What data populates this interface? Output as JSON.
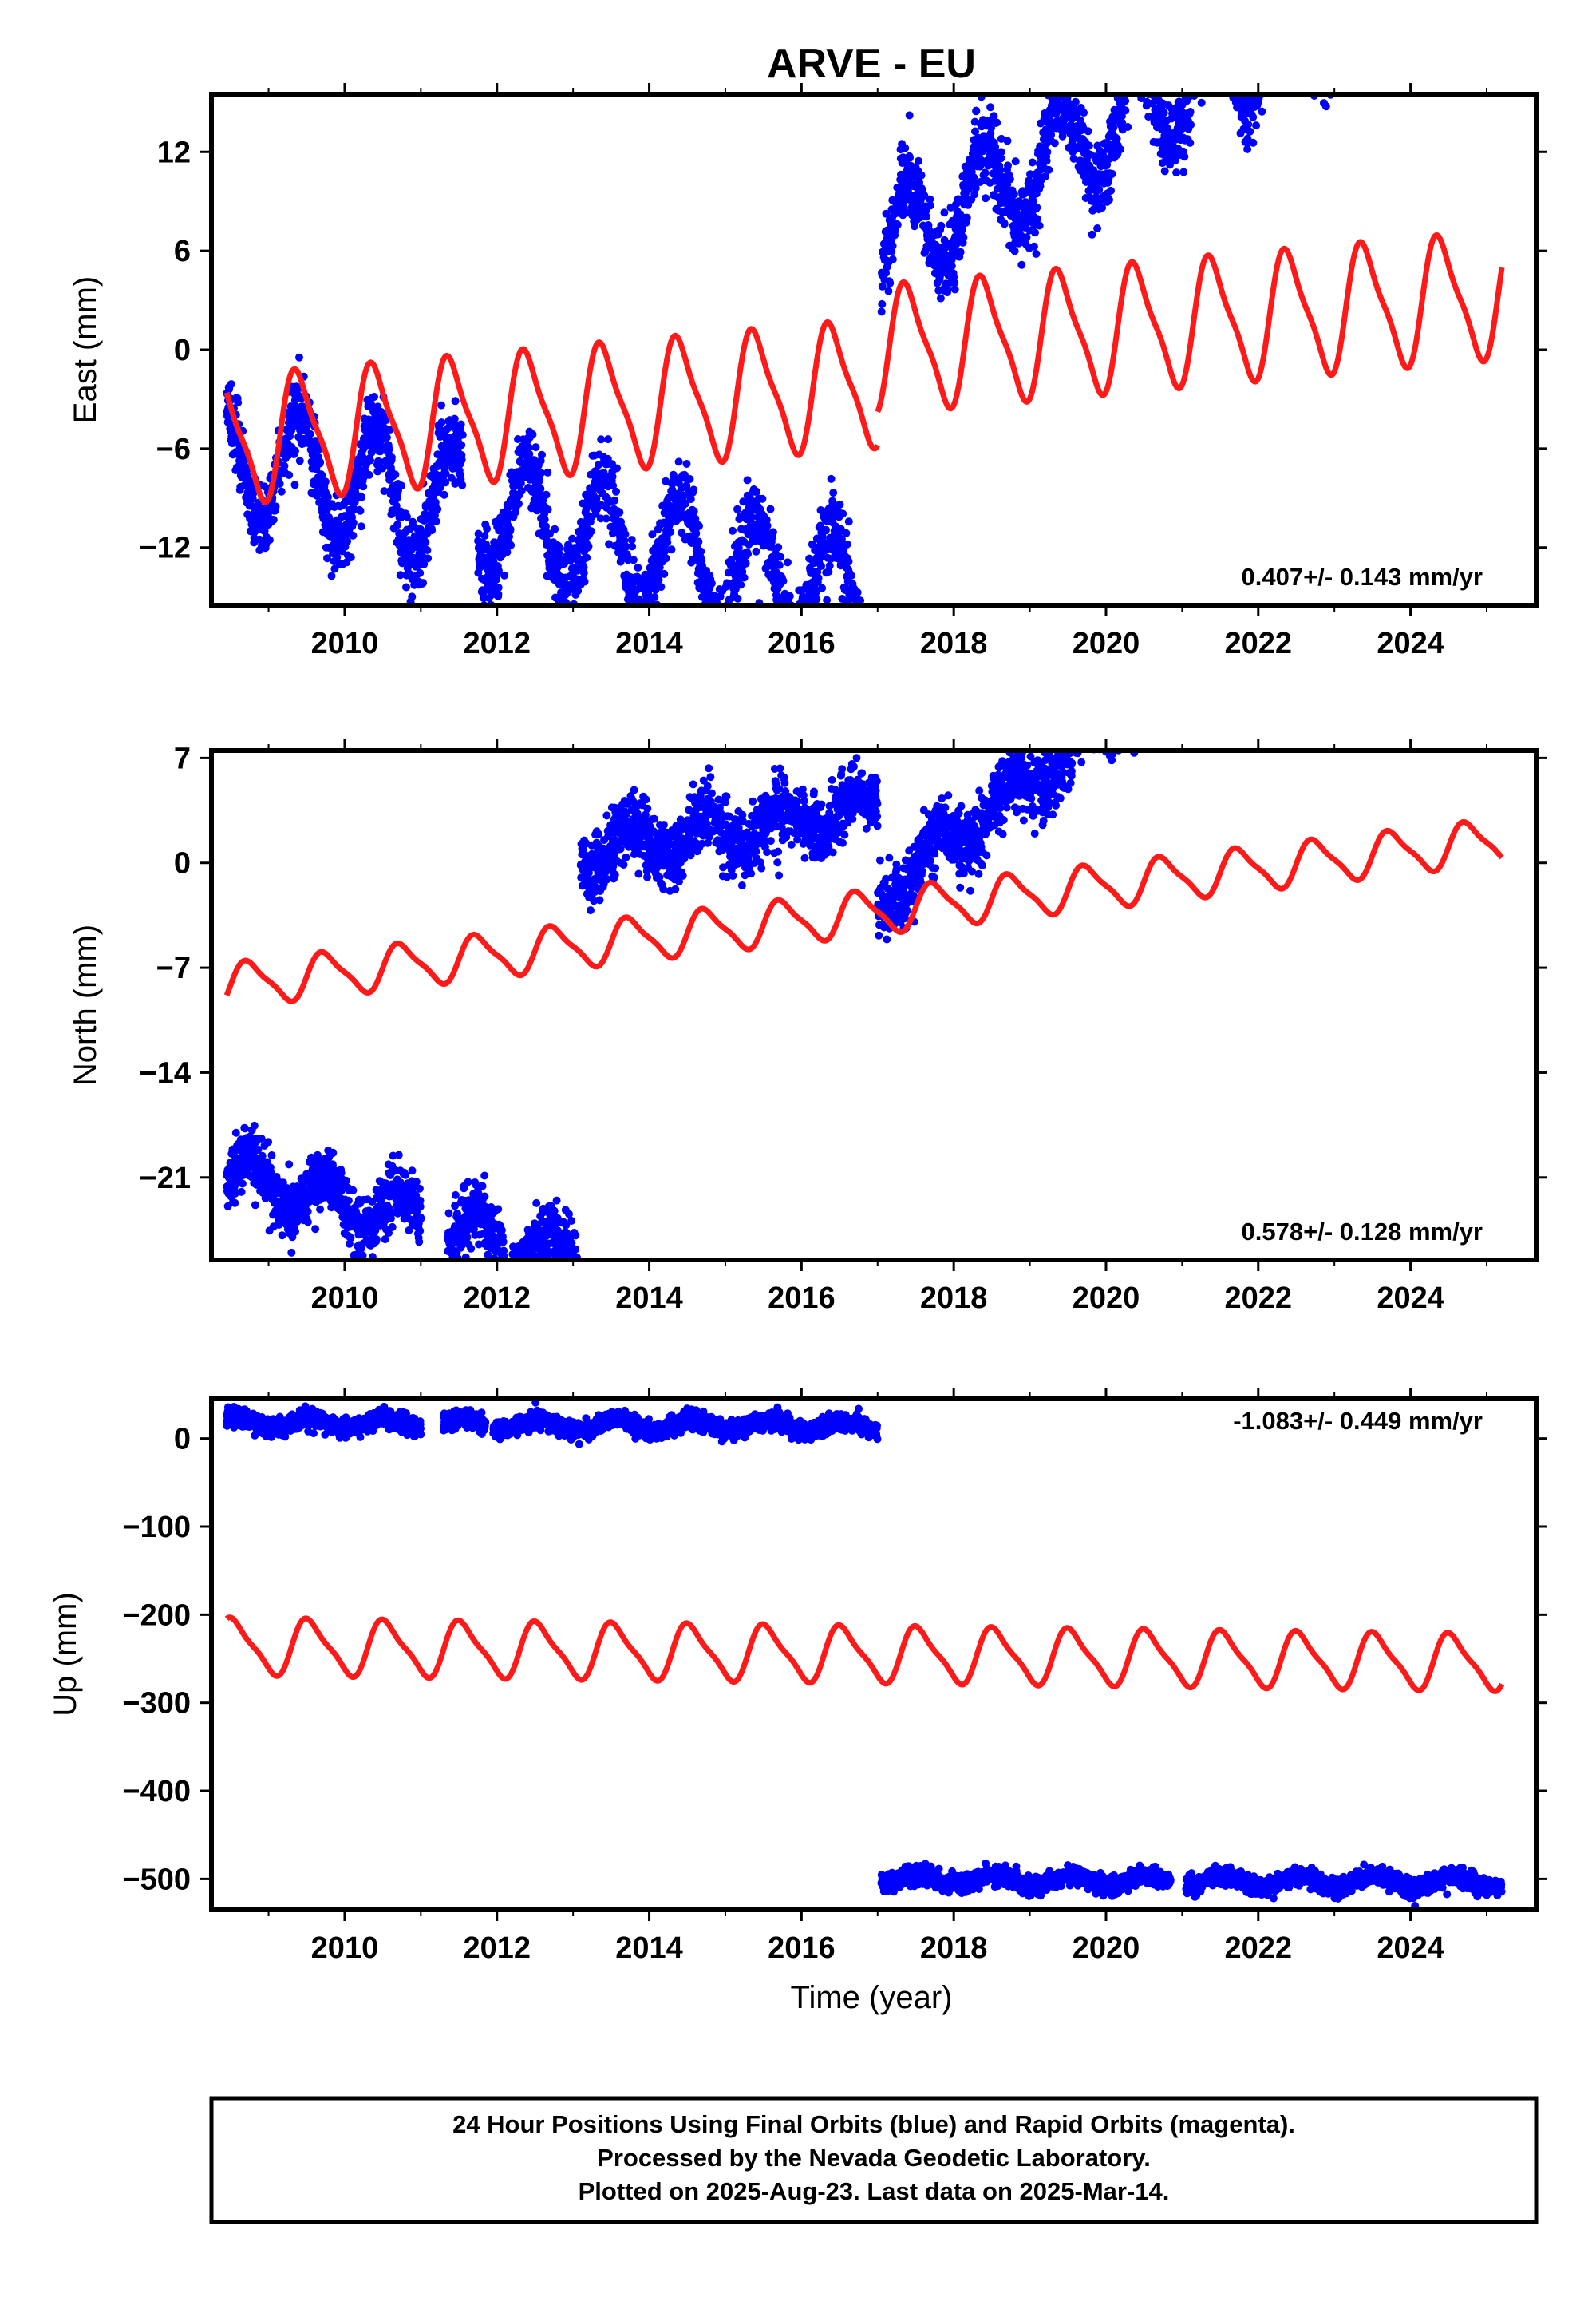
{
  "title": "ARVE - EU",
  "xlabel": "Time (year)",
  "footer": {
    "line1": "24 Hour Positions Using Final Orbits (blue) and Rapid Orbits (magenta).",
    "line2": "Processed by the Nevada Geodetic Laboratory.",
    "line3": "Plotted on 2025-Aug-23. Last data on 2025-Mar-14."
  },
  "colors": {
    "data": "#0000ff",
    "model": "#ff1a1a",
    "frame": "#000000"
  },
  "chart_data": [
    {
      "type": "scatter",
      "id": "east",
      "ylabel": "East (mm)",
      "rate": "0.407+/- 0.143 mm/yr",
      "xlim": [
        2008.25,
        2025.65
      ],
      "ylim": [
        -15.5,
        15.5
      ],
      "xticks": [
        2010,
        2012,
        2014,
        2016,
        2018,
        2020,
        2022,
        2024
      ],
      "xtick_labels": [
        "2010",
        "2012",
        "2014",
        "2016",
        "2018",
        "2020",
        "2022",
        "2024"
      ],
      "yticks": [
        12,
        6,
        0,
        -6,
        -12
      ],
      "ytick_labels": [
        "12",
        "6",
        "0",
        "−6",
        "−12"
      ],
      "series": [
        {
          "kind": "points",
          "segments": [
            {
              "start": 2008.45,
              "end": 2017.0,
              "trend": -6.5,
              "offset": -1.0,
              "amplitude": 3.6,
              "phase": 0.15,
              "noise": 1.2
            },
            {
              "start": 2017.0,
              "end": 2025.2,
              "trend": 6.0,
              "offset": 2.5,
              "amplitude": 3.2,
              "phase": 0.15,
              "noise": 1.2
            }
          ],
          "gaps": [
            [
              2011.55,
              2011.75
            ],
            [
              2016.9,
              2017.05
            ]
          ]
        },
        {
          "kind": "model",
          "segments": [
            {
              "start": 2008.45,
              "end": 2017.0,
              "trend": 0.407,
              "offset": -5.5,
              "ref": 2008.45,
              "amplitude": 3.6,
              "phase": 0.15
            },
            {
              "start": 2017.0,
              "end": 2025.2,
              "trend": 0.407,
              "offset": 0.0,
              "ref": 2017.0,
              "amplitude": 3.6,
              "phase": 0.15
            }
          ]
        }
      ]
    },
    {
      "type": "scatter",
      "id": "north",
      "ylabel": "North (mm)",
      "rate": "0.578+/- 0.128 mm/yr",
      "xlim": [
        2008.25,
        2025.65
      ],
      "ylim": [
        -26.5,
        7.5
      ],
      "xticks": [
        2010,
        2012,
        2014,
        2016,
        2018,
        2020,
        2022,
        2024
      ],
      "xtick_labels": [
        "2010",
        "2012",
        "2014",
        "2016",
        "2018",
        "2020",
        "2022",
        "2024"
      ],
      "yticks": [
        7,
        0,
        -7,
        -14,
        -21
      ],
      "ytick_labels": [
        "7",
        "0",
        "−7",
        "−14",
        "−21"
      ],
      "series": [
        {
          "kind": "points",
          "segments": [
            {
              "start": 2008.45,
              "end": 2013.05,
              "trend": -20.8,
              "offset": -1.2,
              "amplitude": 1.5,
              "phase": 0.5,
              "noise": 1.0
            },
            {
              "start": 2013.1,
              "end": 2017.0,
              "trend": 0.6,
              "offset": 0.8,
              "amplitude": 1.2,
              "phase": 0.5,
              "noise": 1.1
            },
            {
              "start": 2017.0,
              "end": 2025.2,
              "trend": -2.5,
              "offset": 4.0,
              "amplitude": 1.2,
              "phase": 0.5,
              "noise": 1.1
            }
          ],
          "gaps": [
            [
              2011.0,
              2011.35
            ],
            [
              2012.1,
              2012.2
            ]
          ]
        },
        {
          "kind": "model",
          "segments": [
            {
              "start": 2008.45,
              "end": 2025.2,
              "trend": 0.578,
              "offset": -8.2,
              "ref": 2008.45,
              "amplitude": 1.4,
              "phase": 0.5
            }
          ]
        }
      ]
    },
    {
      "type": "scatter",
      "id": "up",
      "ylabel": "Up (mm)",
      "rate": "-1.083+/- 0.449 mm/yr",
      "xlim": [
        2008.25,
        2025.65
      ],
      "ylim": [
        -535,
        45
      ],
      "xticks": [
        2010,
        2012,
        2014,
        2016,
        2018,
        2020,
        2022,
        2024
      ],
      "xtick_labels": [
        "2010",
        "2012",
        "2014",
        "2016",
        "2018",
        "2020",
        "2022",
        "2024"
      ],
      "yticks": [
        0,
        -100,
        -200,
        -300,
        -400,
        -500
      ],
      "ytick_labels": [
        "0",
        "−100",
        "−200",
        "−300",
        "−400",
        "−500"
      ],
      "series": [
        {
          "kind": "points",
          "segments": [
            {
              "start": 2008.45,
              "end": 2017.0,
              "trend": 18.0,
              "offset": -0.5,
              "amplitude": 6.0,
              "phase": 0.3,
              "noise": 5.0
            },
            {
              "start": 2017.05,
              "end": 2025.2,
              "trend": -500.0,
              "offset": -0.5,
              "amplitude": 6.0,
              "phase": 0.3,
              "noise": 5.0
            }
          ],
          "gaps": [
            [
              2011.0,
              2011.3
            ],
            [
              2011.85,
              2011.95
            ],
            [
              2020.85,
              2021.05
            ]
          ]
        },
        {
          "kind": "model",
          "segments": [
            {
              "start": 2008.45,
              "end": 2025.2,
              "trend": -1.083,
              "offset": -236.0,
              "ref": 2008.45,
              "amplitude": 30.0,
              "phase": 0.3
            }
          ]
        }
      ]
    }
  ]
}
